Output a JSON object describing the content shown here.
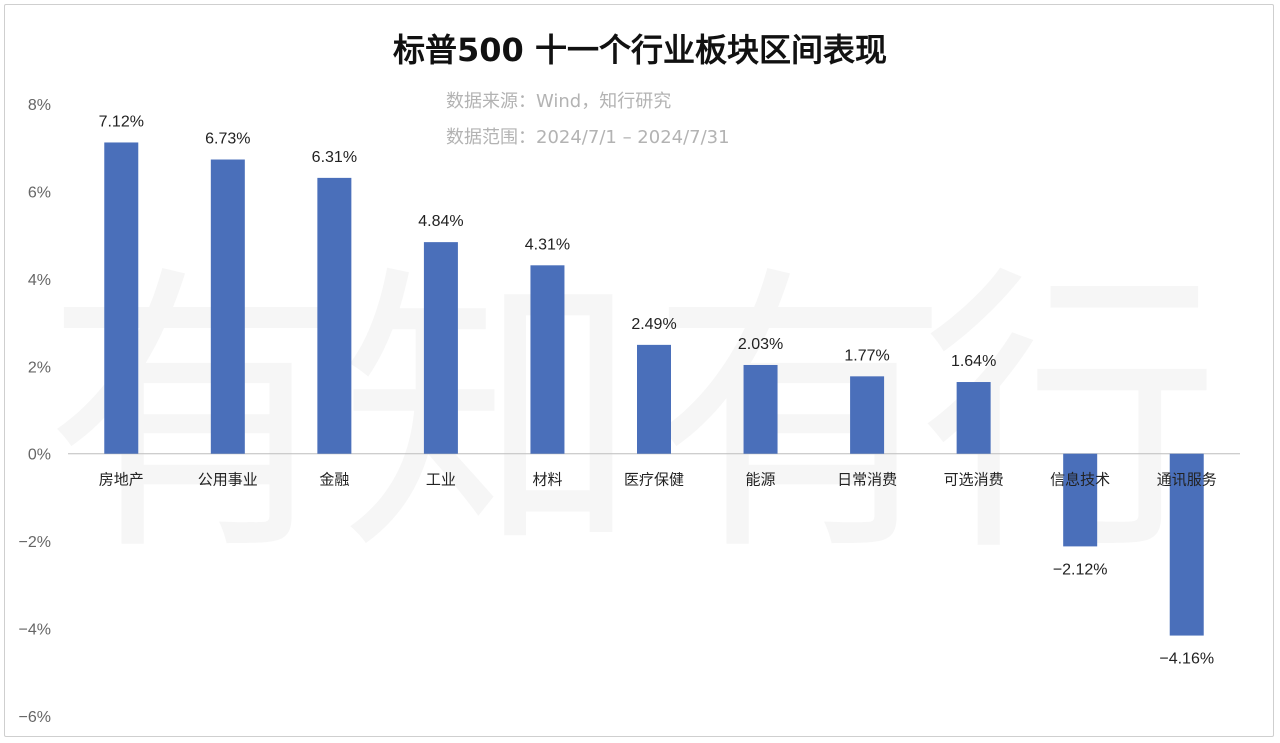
{
  "chart_data": {
    "type": "bar",
    "title": "标普500 十一个行业板块区间表现",
    "subtitle_lines": [
      "数据来源：Wind，知行研究",
      "数据范围：2024/7/1 – 2024/7/31"
    ],
    "watermark": "有知有行",
    "categories": [
      "房地产",
      "公用事业",
      "金融",
      "工业",
      "材料",
      "医疗保健",
      "能源",
      "日常消费",
      "可选消费",
      "信息技术",
      "通讯服务"
    ],
    "values": [
      7.12,
      6.73,
      6.31,
      4.84,
      4.31,
      2.49,
      2.03,
      1.77,
      1.64,
      -2.12,
      -4.16
    ],
    "value_labels": [
      "7.12%",
      "6.73%",
      "6.31%",
      "4.84%",
      "4.31%",
      "2.49%",
      "2.03%",
      "1.77%",
      "1.64%",
      "−2.12%",
      "−4.16%"
    ],
    "y_ticks": [
      8,
      6,
      4,
      2,
      0,
      -2,
      -4,
      -6
    ],
    "y_tick_labels": [
      "8%",
      "6%",
      "4%",
      "2%",
      "0%",
      "−2%",
      "−4%",
      "−6%"
    ],
    "ylim": [
      -6,
      8
    ],
    "grid": false,
    "legend": "none",
    "bar_color": "#4a6fba"
  }
}
